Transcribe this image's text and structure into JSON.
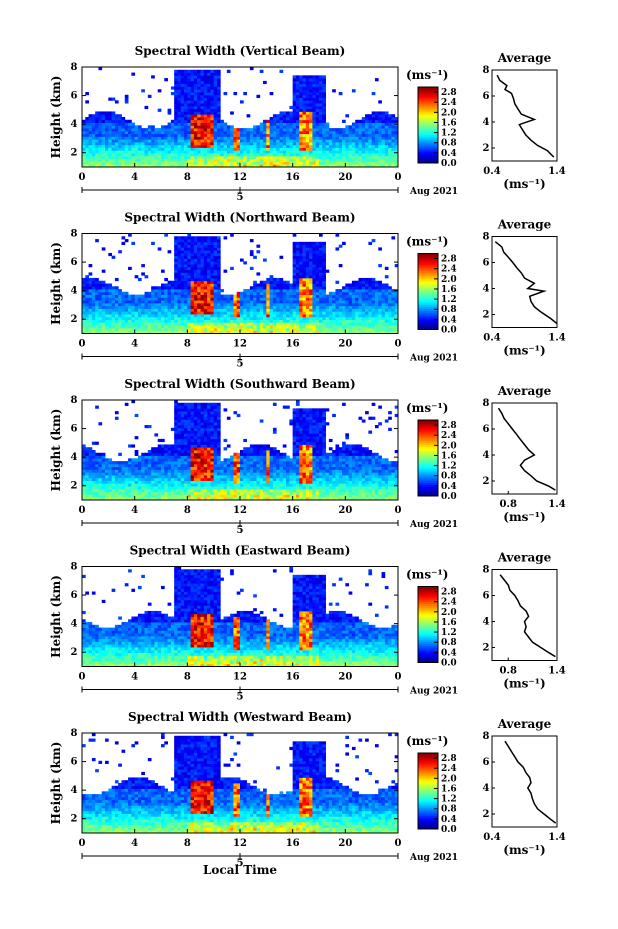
{
  "figure": {
    "xlabel": "Local Time",
    "date_label": "Aug 2021",
    "date_marker": "5",
    "colorbar_unit": "(ms⁻¹)",
    "avg_title": "Average",
    "avg_unit": "(ms⁻¹)"
  },
  "colors": {
    "jet": [
      "#00007f",
      "#0000ff",
      "#007fff",
      "#00ffff",
      "#7fff7f",
      "#ffff00",
      "#ff7f00",
      "#ff0000",
      "#7f0000"
    ],
    "axes": "#000000",
    "background": "#ffffff"
  },
  "chart_data": [
    {
      "type": "heatmap",
      "title": "Spectral Width (Vertical Beam)",
      "ylabel": "Height (km)",
      "xlabel": "Local Time",
      "xticks": [
        "0",
        "4",
        "8",
        "12",
        "16",
        "20",
        "0"
      ],
      "xlim": [
        0,
        24
      ],
      "yticks": [
        "2",
        "4",
        "6",
        "8"
      ],
      "ylim": [
        1,
        8
      ],
      "colorbar": {
        "label": "(ms⁻¹)",
        "ticks": [
          "0.0",
          "0.4",
          "0.8",
          "1.2",
          "1.6",
          "2.0",
          "2.4",
          "2.8"
        ],
        "range": [
          0,
          3.0
        ]
      },
      "average_profile": {
        "title": "Average",
        "xlabel": "(ms⁻¹)",
        "xticks": [
          "0.4",
          "1.4"
        ],
        "xlim": [
          0.4,
          1.4
        ],
        "ylim": [
          1,
          8
        ],
        "points": [
          [
            0.48,
            7.6
          ],
          [
            0.52,
            7.2
          ],
          [
            0.63,
            6.8
          ],
          [
            0.6,
            6.5
          ],
          [
            0.7,
            6.2
          ],
          [
            0.73,
            5.8
          ],
          [
            0.75,
            5.4
          ],
          [
            0.8,
            5.0
          ],
          [
            0.85,
            4.6
          ],
          [
            1.05,
            4.2
          ],
          [
            0.82,
            3.8
          ],
          [
            0.87,
            3.4
          ],
          [
            0.92,
            3.0
          ],
          [
            1.0,
            2.6
          ],
          [
            1.1,
            2.2
          ],
          [
            1.25,
            1.8
          ],
          [
            1.35,
            1.3
          ]
        ]
      }
    },
    {
      "type": "heatmap",
      "title": "Spectral Width (Northward Beam)",
      "ylabel": "Height (km)",
      "xlabel": "Local Time",
      "xticks": [
        "0",
        "4",
        "8",
        "12",
        "16",
        "20",
        "0"
      ],
      "xlim": [
        0,
        24
      ],
      "yticks": [
        "2",
        "4",
        "6",
        "8"
      ],
      "ylim": [
        1,
        8
      ],
      "colorbar": {
        "label": "(ms⁻¹)",
        "ticks": [
          "0.0",
          "0.4",
          "0.8",
          "1.2",
          "1.6",
          "2.0",
          "2.4",
          "2.8"
        ],
        "range": [
          0,
          3.0
        ]
      },
      "average_profile": {
        "title": "Average",
        "xlabel": "(ms⁻¹)",
        "xticks": [
          "0.4",
          "1.4"
        ],
        "xlim": [
          0.4,
          1.4
        ],
        "ylim": [
          1,
          8
        ],
        "points": [
          [
            0.45,
            7.6
          ],
          [
            0.55,
            7.2
          ],
          [
            0.58,
            6.8
          ],
          [
            0.65,
            6.4
          ],
          [
            0.72,
            6.0
          ],
          [
            0.78,
            5.6
          ],
          [
            0.85,
            5.2
          ],
          [
            0.9,
            4.8
          ],
          [
            1.05,
            4.4
          ],
          [
            0.95,
            4.0
          ],
          [
            1.2,
            3.8
          ],
          [
            0.98,
            3.4
          ],
          [
            1.0,
            3.0
          ],
          [
            1.05,
            2.6
          ],
          [
            1.15,
            2.2
          ],
          [
            1.3,
            1.7
          ],
          [
            1.4,
            1.3
          ]
        ]
      }
    },
    {
      "type": "heatmap",
      "title": "Spectral Width (Southward Beam)",
      "ylabel": "Height (km)",
      "xlabel": "Local Time",
      "xticks": [
        "0",
        "4",
        "8",
        "12",
        "16",
        "20",
        "0"
      ],
      "xlim": [
        0,
        24
      ],
      "yticks": [
        "2",
        "4",
        "6",
        "8"
      ],
      "ylim": [
        1,
        8
      ],
      "colorbar": {
        "label": "(ms⁻¹)",
        "ticks": [
          "0.0",
          "0.4",
          "0.8",
          "1.2",
          "1.6",
          "2.0",
          "2.4",
          "2.8"
        ],
        "range": [
          0,
          3.0
        ]
      },
      "average_profile": {
        "title": "Average",
        "xlabel": "(ms⁻¹)",
        "xticks": [
          "0.8",
          "1.4"
        ],
        "xlim": [
          0.6,
          1.4
        ],
        "ylim": [
          1,
          8
        ],
        "points": [
          [
            0.68,
            7.6
          ],
          [
            0.72,
            7.2
          ],
          [
            0.75,
            6.8
          ],
          [
            0.8,
            6.4
          ],
          [
            0.85,
            6.0
          ],
          [
            0.9,
            5.6
          ],
          [
            0.95,
            5.2
          ],
          [
            1.0,
            4.8
          ],
          [
            1.05,
            4.4
          ],
          [
            1.12,
            4.0
          ],
          [
            1.0,
            3.6
          ],
          [
            0.95,
            3.2
          ],
          [
            1.0,
            2.8
          ],
          [
            1.08,
            2.4
          ],
          [
            1.15,
            2.0
          ],
          [
            1.3,
            1.6
          ],
          [
            1.38,
            1.3
          ]
        ]
      }
    },
    {
      "type": "heatmap",
      "title": "Spectral Width (Eastward Beam)",
      "ylabel": "Height (km)",
      "xlabel": "Local Time",
      "xticks": [
        "0",
        "4",
        "8",
        "12",
        "16",
        "20",
        "0"
      ],
      "xlim": [
        0,
        24
      ],
      "yticks": [
        "2",
        "4",
        "6",
        "8"
      ],
      "ylim": [
        1,
        8
      ],
      "colorbar": {
        "label": "(ms⁻¹)",
        "ticks": [
          "0.0",
          "0.4",
          "0.8",
          "1.2",
          "1.6",
          "2.0",
          "2.4",
          "2.8"
        ],
        "range": [
          0,
          3.0
        ]
      },
      "average_profile": {
        "title": "Average",
        "xlabel": "(ms⁻¹)",
        "xticks": [
          "0.8",
          "1.4"
        ],
        "xlim": [
          0.6,
          1.4
        ],
        "ylim": [
          1,
          8
        ],
        "points": [
          [
            0.7,
            7.6
          ],
          [
            0.75,
            7.2
          ],
          [
            0.8,
            6.8
          ],
          [
            0.82,
            6.4
          ],
          [
            0.88,
            6.0
          ],
          [
            0.92,
            5.6
          ],
          [
            0.95,
            5.2
          ],
          [
            1.02,
            4.8
          ],
          [
            1.05,
            4.4
          ],
          [
            1.0,
            4.0
          ],
          [
            1.02,
            3.6
          ],
          [
            1.0,
            3.2
          ],
          [
            1.05,
            2.8
          ],
          [
            1.1,
            2.4
          ],
          [
            1.2,
            2.0
          ],
          [
            1.3,
            1.6
          ],
          [
            1.38,
            1.3
          ]
        ]
      }
    },
    {
      "type": "heatmap",
      "title": "Spectral Width (Westward Beam)",
      "ylabel": "Height (km)",
      "xlabel": "Local Time",
      "xticks": [
        "0",
        "4",
        "8",
        "12",
        "16",
        "20",
        "0"
      ],
      "xlim": [
        0,
        24
      ],
      "yticks": [
        "2",
        "4",
        "6",
        "8"
      ],
      "ylim": [
        1,
        8
      ],
      "colorbar": {
        "label": "(ms⁻¹)",
        "ticks": [
          "0.0",
          "0.4",
          "0.8",
          "1.2",
          "1.6",
          "2.0",
          "2.4",
          "2.8"
        ],
        "range": [
          0,
          3.0
        ]
      },
      "average_profile": {
        "title": "Average",
        "xlabel": "(ms⁻¹)",
        "xticks": [
          "0.4",
          "1.4"
        ],
        "xlim": [
          0.4,
          1.4
        ],
        "ylim": [
          1,
          8
        ],
        "points": [
          [
            0.6,
            7.6
          ],
          [
            0.65,
            7.2
          ],
          [
            0.7,
            6.8
          ],
          [
            0.75,
            6.4
          ],
          [
            0.8,
            6.0
          ],
          [
            0.88,
            5.6
          ],
          [
            0.92,
            5.2
          ],
          [
            0.98,
            4.8
          ],
          [
            1.0,
            4.4
          ],
          [
            0.95,
            4.0
          ],
          [
            1.0,
            3.6
          ],
          [
            1.02,
            3.2
          ],
          [
            1.05,
            2.8
          ],
          [
            1.1,
            2.4
          ],
          [
            1.2,
            2.0
          ],
          [
            1.3,
            1.6
          ],
          [
            1.38,
            1.3
          ]
        ]
      }
    }
  ]
}
